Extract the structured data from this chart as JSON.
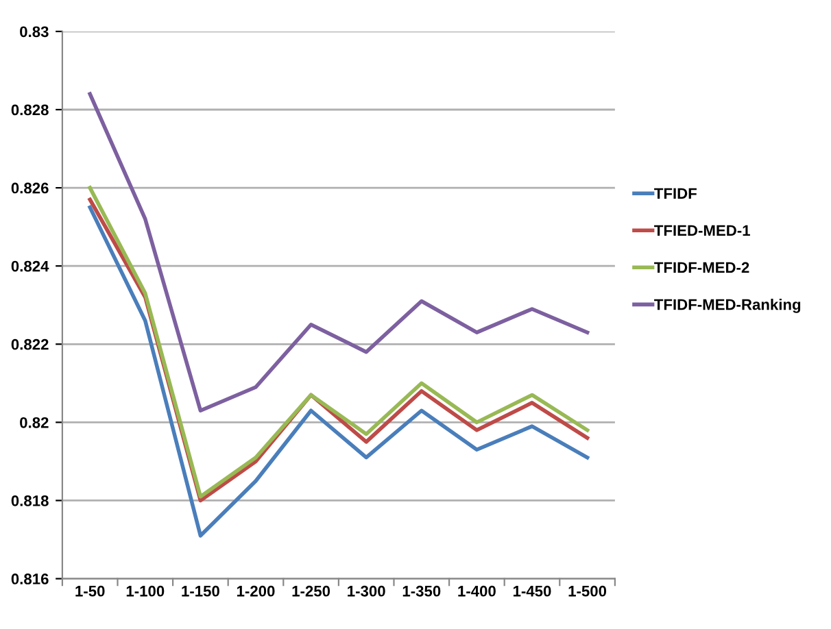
{
  "chart_data": {
    "type": "line",
    "categories": [
      "1-50",
      "1-100",
      "1-150",
      "1-200",
      "1-250",
      "1-300",
      "1-350",
      "1-400",
      "1-450",
      "1-500"
    ],
    "series": [
      {
        "name": "TFIDF",
        "color": "#4a7ebb",
        "values": [
          0.8255,
          0.8226,
          0.8171,
          0.8185,
          0.8203,
          0.8191,
          0.8203,
          0.8193,
          0.8199,
          0.8191
        ]
      },
      {
        "name": "TFIED-MED-1",
        "color": "#be4b48",
        "values": [
          0.8257,
          0.8232,
          0.818,
          0.819,
          0.8207,
          0.8195,
          0.8208,
          0.8198,
          0.8205,
          0.8196
        ]
      },
      {
        "name": "TFIDF-MED-2",
        "color": "#98b954",
        "values": [
          0.826,
          0.8233,
          0.8181,
          0.8191,
          0.8207,
          0.8197,
          0.821,
          0.82,
          0.8207,
          0.8198
        ]
      },
      {
        "name": "TFIDF-MED-Ranking",
        "color": "#7d60a0",
        "values": [
          0.8284,
          0.8252,
          0.8203,
          0.8209,
          0.8225,
          0.8218,
          0.8231,
          0.8223,
          0.8229,
          0.8223
        ]
      }
    ],
    "ylim": [
      0.816,
      0.83
    ],
    "yticks": [
      0.816,
      0.818,
      0.82,
      0.822,
      0.824,
      0.826,
      0.828,
      0.83
    ],
    "grid": "y",
    "legend": "right",
    "marker": "none",
    "line_style": "solid"
  }
}
